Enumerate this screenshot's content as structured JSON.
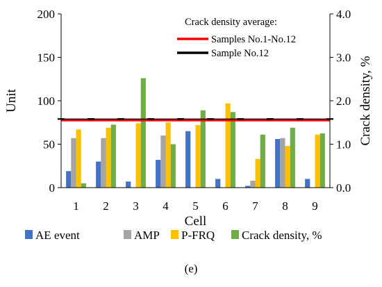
{
  "chart_data": {
    "type": "bar",
    "panel_label": "(e)",
    "xlabel": "Cell",
    "ylabel_left": "Unit",
    "ylabel_right": "Crack density, %",
    "left_ylim": [
      0,
      200
    ],
    "left_ticks": [
      "0",
      "50",
      "100",
      "150",
      "200"
    ],
    "right_ylim": [
      0,
      4.0
    ],
    "right_ticks": [
      "0.0",
      "1.0",
      "2.0",
      "3.0",
      "4.0"
    ],
    "categories": [
      "1",
      "2",
      "3",
      "4",
      "5",
      "6",
      "7",
      "8",
      "9"
    ],
    "series": [
      {
        "name": "AE event",
        "axis": "left",
        "color": "#4472c4",
        "values": [
          19,
          30,
          7,
          32,
          65,
          10,
          2,
          56,
          10
        ]
      },
      {
        "name": "AMP",
        "axis": "left",
        "color": "#a5a5a5",
        "values": [
          57,
          57,
          0,
          60,
          0,
          0,
          8,
          57,
          0
        ]
      },
      {
        "name": "P-FRQ",
        "axis": "left",
        "color": "#ffc000",
        "values": [
          67,
          69,
          74,
          75,
          72,
          97,
          33,
          48,
          61
        ]
      },
      {
        "name": "Crack density, %",
        "axis": "right",
        "color": "#70ad47",
        "values": [
          0.1,
          1.45,
          2.52,
          1.0,
          1.78,
          1.74,
          1.22,
          1.38,
          1.25
        ]
      }
    ],
    "lines": [
      {
        "name": "Samples No.1-No.12",
        "axis": "right",
        "value": 1.55,
        "color": "#ff0000"
      },
      {
        "name": "Sample No.12",
        "axis": "right",
        "value": 1.58,
        "color": "#000000"
      }
    ],
    "inset_legend_title": "Crack density average:",
    "legend_position": "bottom"
  }
}
